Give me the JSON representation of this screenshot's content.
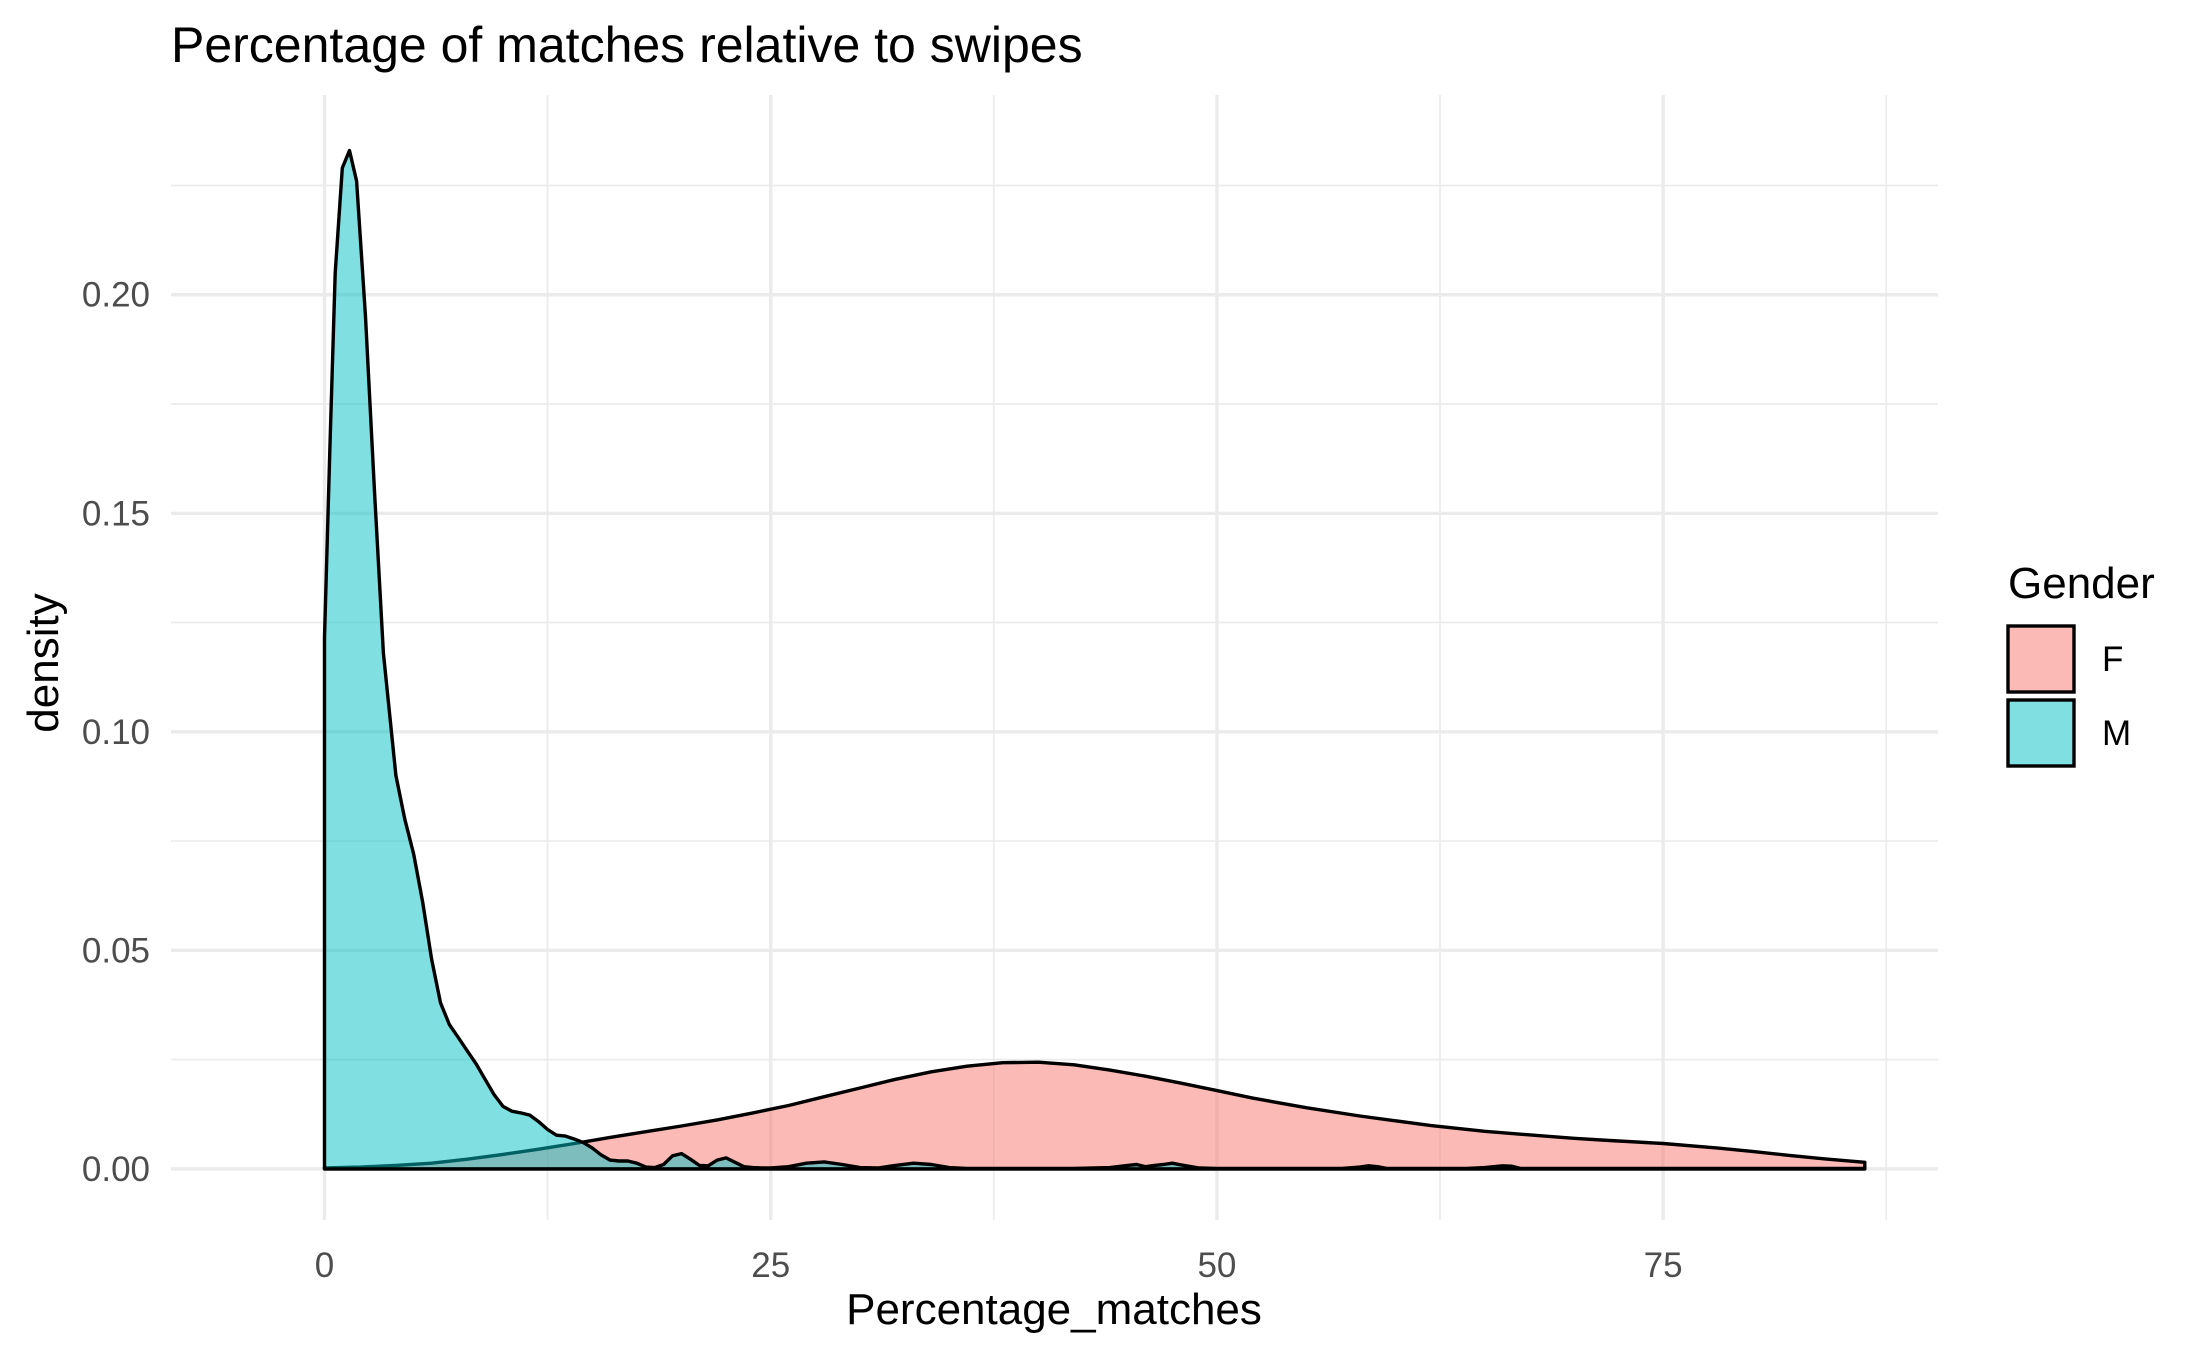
{
  "chart_data": {
    "type": "area",
    "title": "Percentage of matches relative to swipes",
    "xlabel": "Percentage_matches",
    "ylabel": "density",
    "xlim": [
      -8.6,
      90.4
    ],
    "ylim": [
      -0.0117,
      0.2457
    ],
    "x_ticks": [
      0,
      25,
      50,
      75
    ],
    "x_tick_labels": [
      "0",
      "25",
      "50",
      "75"
    ],
    "y_ticks": [
      0.0,
      0.05,
      0.1,
      0.15,
      0.2
    ],
    "y_tick_labels": [
      "0.00",
      "0.05",
      "0.10",
      "0.15",
      "0.20"
    ],
    "grid": true,
    "legend": {
      "title": "Gender",
      "position": "right"
    },
    "series": [
      {
        "name": "F",
        "color": "#F8766D",
        "fill_opacity": 0.5,
        "x": [
          0,
          2,
          4,
          6,
          8,
          10,
          12,
          14,
          16,
          18,
          20,
          22,
          24,
          26,
          28,
          30,
          32,
          34,
          36,
          38,
          40,
          42,
          44,
          46,
          48,
          50,
          52,
          55,
          58,
          60,
          62,
          65,
          68,
          70,
          72,
          75,
          78,
          80,
          82,
          84,
          86.3
        ],
        "values": [
          0.0002,
          0.0004,
          0.0008,
          0.0013,
          0.0022,
          0.0033,
          0.0045,
          0.0058,
          0.0072,
          0.0085,
          0.0098,
          0.0112,
          0.0128,
          0.0145,
          0.0165,
          0.0185,
          0.0205,
          0.0222,
          0.0235,
          0.0243,
          0.0244,
          0.0238,
          0.0226,
          0.0212,
          0.0196,
          0.0179,
          0.0162,
          0.014,
          0.0121,
          0.011,
          0.0099,
          0.0086,
          0.0076,
          0.007,
          0.0065,
          0.0058,
          0.0048,
          0.004,
          0.0031,
          0.0023,
          0.0015
        ]
      },
      {
        "name": "M",
        "color": "#00BFC4",
        "fill_opacity": 0.5,
        "x": [
          0,
          0.3,
          0.6,
          1.0,
          1.4,
          1.8,
          2.3,
          2.8,
          3.3,
          4.0,
          4.5,
          5.0,
          5.5,
          6.0,
          6.5,
          7.0,
          7.5,
          8.0,
          8.5,
          9.0,
          9.5,
          10.0,
          10.5,
          11.0,
          11.5,
          12.0,
          12.5,
          13.0,
          13.5,
          14.0,
          14.5,
          15.0,
          15.5,
          16.0,
          16.5,
          17.0,
          17.5,
          18.0,
          18.5,
          19.0,
          19.5,
          20.0,
          20.5,
          21.0,
          21.5,
          22.0,
          22.5,
          23.0,
          23.5,
          24.0,
          24.5,
          25.0,
          26.0,
          27.0,
          28.0,
          29.0,
          30.0,
          31.0,
          32.0,
          33.0,
          34.0,
          35.0,
          36.0,
          37.0,
          38.0,
          40.0,
          42.0,
          44.0,
          45.0,
          45.5,
          46.0,
          46.5,
          47.0,
          47.5,
          48.0,
          49.0,
          50.0,
          52.0,
          55.0,
          57.0,
          58.0,
          58.5,
          59.0,
          59.5,
          60.0,
          62.0,
          64.0,
          65.0,
          66.0,
          66.5,
          67.0,
          67.5,
          68.0,
          70.0,
          75.0,
          80.0,
          86.3
        ],
        "values": [
          0.1215,
          0.165,
          0.205,
          0.229,
          0.233,
          0.226,
          0.195,
          0.155,
          0.118,
          0.09,
          0.08,
          0.072,
          0.061,
          0.048,
          0.038,
          0.033,
          0.03,
          0.027,
          0.024,
          0.0205,
          0.017,
          0.0143,
          0.0132,
          0.0128,
          0.0123,
          0.0108,
          0.009,
          0.0077,
          0.0075,
          0.0068,
          0.006,
          0.0048,
          0.0032,
          0.002,
          0.0018,
          0.0018,
          0.0013,
          0.0004,
          0.0003,
          0.001,
          0.003,
          0.0035,
          0.0022,
          0.0008,
          0.0007,
          0.002,
          0.0025,
          0.0015,
          0.0005,
          0.0003,
          0.0002,
          0.0002,
          0.0005,
          0.0013,
          0.0016,
          0.001,
          0.0003,
          0.0002,
          0.0008,
          0.0013,
          0.001,
          0.0003,
          0.0001,
          0.0001,
          0.0001,
          0.0001,
          0.0001,
          0.0003,
          0.0008,
          0.001,
          0.0005,
          0.0008,
          0.001,
          0.0013,
          0.0009,
          0.0002,
          0.0001,
          0.0001,
          0.0001,
          0.0001,
          0.0004,
          0.0007,
          0.0005,
          0.0001,
          0.0001,
          0.0001,
          0.0001,
          0.0003,
          0.0007,
          0.0006,
          0.0001,
          0.0001,
          0.0001,
          0.0001,
          0.0001,
          0.0001,
          0.0001
        ]
      }
    ]
  }
}
